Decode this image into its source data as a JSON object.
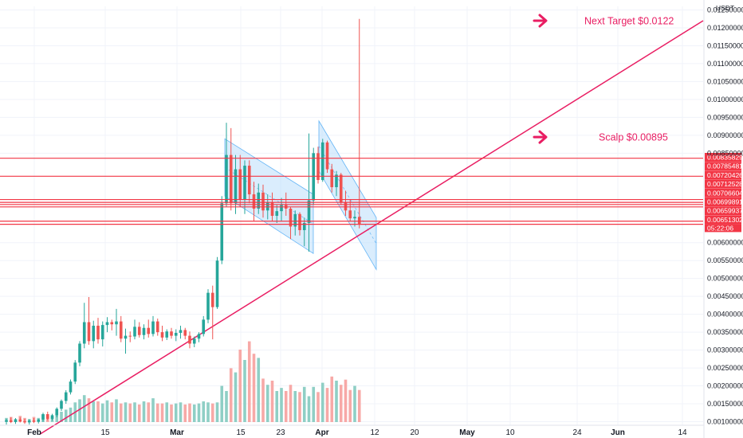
{
  "colors": {
    "up": "#26a69a",
    "down": "#ef5350",
    "up_volume": "#8fcfc5",
    "down_volume": "#f7a9a7",
    "annotation": "#e91e63",
    "level_line": "#f23645",
    "channel_fill": "#bbdefb",
    "channel_line": "#64b5f6",
    "grid": "#f0f3fa",
    "axis_text": "#131722"
  },
  "icons": {
    "arrow": "arrow-right-icon"
  },
  "chart_data": {
    "type": "candlestick",
    "quote_unit": "USDT",
    "y_axis": {
      "position": "right",
      "scale": "linear",
      "ylim": [
        0.0009,
        0.0126
      ],
      "tick_labels": [
        "0.01250000",
        "0.01200000",
        "0.01150000",
        "0.01100000",
        "0.01050000",
        "0.01000000",
        "0.00950000",
        "0.00900000",
        "0.00850000",
        "0.00600000",
        "0.00550000",
        "0.00500000",
        "0.00450000",
        "0.00400000",
        "0.00350000",
        "0.00300000",
        "0.00250000",
        "0.00200000",
        "0.00150000",
        "0.00100000"
      ]
    },
    "x_axis": {
      "tick_labels": [
        "Feb",
        "15",
        "Mar",
        "15",
        "23",
        "Apr",
        "12",
        "20",
        "May",
        "10",
        "24",
        "Jun",
        "14"
      ]
    },
    "grid": true,
    "candles": [
      {
        "o": 0.001,
        "h": 0.00108,
        "l": 0.00092,
        "c": 0.00104
      },
      {
        "o": 0.00104,
        "h": 0.00112,
        "l": 0.00096,
        "c": 0.00099
      },
      {
        "o": 0.00099,
        "h": 0.0011,
        "l": 0.00094,
        "c": 0.00106
      },
      {
        "o": 0.00106,
        "h": 0.00112,
        "l": 0.00098,
        "c": 0.00101
      },
      {
        "o": 0.00101,
        "h": 0.00108,
        "l": 0.00094,
        "c": 0.00098
      },
      {
        "o": 0.00098,
        "h": 0.00106,
        "l": 0.00092,
        "c": 0.00103
      },
      {
        "o": 0.00103,
        "h": 0.0011,
        "l": 0.00096,
        "c": 0.001
      },
      {
        "o": 0.001,
        "h": 0.00108,
        "l": 0.00095,
        "c": 0.00106
      },
      {
        "o": 0.00106,
        "h": 0.00125,
        "l": 0.001,
        "c": 0.00121
      },
      {
        "o": 0.00121,
        "h": 0.00128,
        "l": 0.00104,
        "c": 0.00108
      },
      {
        "o": 0.00108,
        "h": 0.00122,
        "l": 0.00103,
        "c": 0.00118
      },
      {
        "o": 0.00118,
        "h": 0.0014,
        "l": 0.00112,
        "c": 0.00136
      },
      {
        "o": 0.00136,
        "h": 0.00162,
        "l": 0.0013,
        "c": 0.00158
      },
      {
        "o": 0.00158,
        "h": 0.00188,
        "l": 0.0015,
        "c": 0.00182
      },
      {
        "o": 0.00182,
        "h": 0.00218,
        "l": 0.00176,
        "c": 0.00212
      },
      {
        "o": 0.00212,
        "h": 0.00272,
        "l": 0.00205,
        "c": 0.00265
      },
      {
        "o": 0.00265,
        "h": 0.00325,
        "l": 0.00255,
        "c": 0.00318
      },
      {
        "o": 0.00318,
        "h": 0.00432,
        "l": 0.00305,
        "c": 0.00378
      },
      {
        "o": 0.00378,
        "h": 0.00448,
        "l": 0.00315,
        "c": 0.00325
      },
      {
        "o": 0.00325,
        "h": 0.00382,
        "l": 0.00305,
        "c": 0.00368
      },
      {
        "o": 0.00368,
        "h": 0.0039,
        "l": 0.00318,
        "c": 0.0033
      },
      {
        "o": 0.0033,
        "h": 0.0038,
        "l": 0.0031,
        "c": 0.0037
      },
      {
        "o": 0.0037,
        "h": 0.00392,
        "l": 0.0035,
        "c": 0.00378
      },
      {
        "o": 0.00378,
        "h": 0.00385,
        "l": 0.00355,
        "c": 0.00372
      },
      {
        "o": 0.00372,
        "h": 0.00415,
        "l": 0.0034,
        "c": 0.0038
      },
      {
        "o": 0.0038,
        "h": 0.00395,
        "l": 0.00322,
        "c": 0.00332
      },
      {
        "o": 0.00332,
        "h": 0.0036,
        "l": 0.0029,
        "c": 0.0034
      },
      {
        "o": 0.0034,
        "h": 0.00352,
        "l": 0.00322,
        "c": 0.00338
      },
      {
        "o": 0.00338,
        "h": 0.00385,
        "l": 0.0033,
        "c": 0.00365
      },
      {
        "o": 0.00365,
        "h": 0.00378,
        "l": 0.00335,
        "c": 0.00342
      },
      {
        "o": 0.00342,
        "h": 0.00372,
        "l": 0.0033,
        "c": 0.00362
      },
      {
        "o": 0.00362,
        "h": 0.00385,
        "l": 0.00335,
        "c": 0.00345
      },
      {
        "o": 0.00345,
        "h": 0.00395,
        "l": 0.00338,
        "c": 0.0038
      },
      {
        "o": 0.0038,
        "h": 0.00388,
        "l": 0.0034,
        "c": 0.0035
      },
      {
        "o": 0.0035,
        "h": 0.00368,
        "l": 0.00325,
        "c": 0.00335
      },
      {
        "o": 0.00335,
        "h": 0.00358,
        "l": 0.00328,
        "c": 0.00352
      },
      {
        "o": 0.00352,
        "h": 0.00362,
        "l": 0.00332,
        "c": 0.0034
      },
      {
        "o": 0.0034,
        "h": 0.00358,
        "l": 0.00325,
        "c": 0.00348
      },
      {
        "o": 0.00348,
        "h": 0.00368,
        "l": 0.00332,
        "c": 0.00356
      },
      {
        "o": 0.00356,
        "h": 0.00362,
        "l": 0.0033,
        "c": 0.0034
      },
      {
        "o": 0.0034,
        "h": 0.00352,
        "l": 0.00305,
        "c": 0.00318
      },
      {
        "o": 0.00318,
        "h": 0.00338,
        "l": 0.00308,
        "c": 0.00332
      },
      {
        "o": 0.00332,
        "h": 0.0035,
        "l": 0.00322,
        "c": 0.00345
      },
      {
        "o": 0.00345,
        "h": 0.00395,
        "l": 0.00338,
        "c": 0.00385
      },
      {
        "o": 0.00385,
        "h": 0.0047,
        "l": 0.00375,
        "c": 0.0046
      },
      {
        "o": 0.0046,
        "h": 0.0048,
        "l": 0.0033,
        "c": 0.0042
      },
      {
        "o": 0.0042,
        "h": 0.0056,
        "l": 0.00415,
        "c": 0.0055
      },
      {
        "o": 0.0055,
        "h": 0.0073,
        "l": 0.0054,
        "c": 0.0071
      },
      {
        "o": 0.0071,
        "h": 0.00935,
        "l": 0.007,
        "c": 0.00845
      },
      {
        "o": 0.00845,
        "h": 0.0092,
        "l": 0.0069,
        "c": 0.0071
      },
      {
        "o": 0.0071,
        "h": 0.00845,
        "l": 0.0068,
        "c": 0.00805
      },
      {
        "o": 0.00805,
        "h": 0.00845,
        "l": 0.007,
        "c": 0.0072
      },
      {
        "o": 0.0072,
        "h": 0.0083,
        "l": 0.0068,
        "c": 0.00815
      },
      {
        "o": 0.00815,
        "h": 0.0083,
        "l": 0.0071,
        "c": 0.00735
      },
      {
        "o": 0.00735,
        "h": 0.0077,
        "l": 0.0066,
        "c": 0.00695
      },
      {
        "o": 0.00695,
        "h": 0.00765,
        "l": 0.0068,
        "c": 0.0074
      },
      {
        "o": 0.0074,
        "h": 0.00762,
        "l": 0.0067,
        "c": 0.0069
      },
      {
        "o": 0.0069,
        "h": 0.00735,
        "l": 0.00665,
        "c": 0.00712
      },
      {
        "o": 0.00712,
        "h": 0.0074,
        "l": 0.0066,
        "c": 0.00675
      },
      {
        "o": 0.00675,
        "h": 0.00705,
        "l": 0.00655,
        "c": 0.00688
      },
      {
        "o": 0.00688,
        "h": 0.00725,
        "l": 0.0066,
        "c": 0.00705
      },
      {
        "o": 0.00705,
        "h": 0.0074,
        "l": 0.00675,
        "c": 0.00695
      },
      {
        "o": 0.00695,
        "h": 0.007,
        "l": 0.0061,
        "c": 0.00645
      },
      {
        "o": 0.00645,
        "h": 0.0069,
        "l": 0.0062,
        "c": 0.0068
      },
      {
        "o": 0.0068,
        "h": 0.00685,
        "l": 0.0062,
        "c": 0.00635
      },
      {
        "o": 0.00635,
        "h": 0.0067,
        "l": 0.0059,
        "c": 0.00655
      },
      {
        "o": 0.00655,
        "h": 0.00905,
        "l": 0.00575,
        "c": 0.00718
      },
      {
        "o": 0.00718,
        "h": 0.00865,
        "l": 0.00705,
        "c": 0.0085
      },
      {
        "o": 0.0085,
        "h": 0.00868,
        "l": 0.00765,
        "c": 0.00775
      },
      {
        "o": 0.00775,
        "h": 0.0089,
        "l": 0.0077,
        "c": 0.0088
      },
      {
        "o": 0.0088,
        "h": 0.00885,
        "l": 0.00795,
        "c": 0.00805
      },
      {
        "o": 0.00805,
        "h": 0.0082,
        "l": 0.0074,
        "c": 0.00755
      },
      {
        "o": 0.00755,
        "h": 0.008,
        "l": 0.0073,
        "c": 0.0079
      },
      {
        "o": 0.0079,
        "h": 0.00795,
        "l": 0.00705,
        "c": 0.00712
      },
      {
        "o": 0.00712,
        "h": 0.00745,
        "l": 0.00675,
        "c": 0.0069
      },
      {
        "o": 0.0069,
        "h": 0.0072,
        "l": 0.0066,
        "c": 0.00668
      },
      {
        "o": 0.00668,
        "h": 0.0069,
        "l": 0.00645,
        "c": 0.00672
      },
      {
        "o": 0.00672,
        "h": 0.01225,
        "l": 0.0064,
        "c": 0.00651
      }
    ],
    "volume_scale_max": 1.0,
    "volumes": [
      0.04,
      0.05,
      0.03,
      0.06,
      0.04,
      0.03,
      0.05,
      0.04,
      0.07,
      0.06,
      0.05,
      0.09,
      0.1,
      0.12,
      0.14,
      0.19,
      0.22,
      0.26,
      0.23,
      0.2,
      0.2,
      0.18,
      0.21,
      0.19,
      0.22,
      0.18,
      0.19,
      0.18,
      0.19,
      0.17,
      0.2,
      0.19,
      0.23,
      0.18,
      0.18,
      0.19,
      0.17,
      0.18,
      0.19,
      0.17,
      0.18,
      0.17,
      0.18,
      0.2,
      0.19,
      0.18,
      0.19,
      0.35,
      0.3,
      0.52,
      0.48,
      0.7,
      0.6,
      0.78,
      0.66,
      0.62,
      0.42,
      0.36,
      0.4,
      0.3,
      0.33,
      0.3,
      0.36,
      0.3,
      0.29,
      0.34,
      0.25,
      0.34,
      0.29,
      0.38,
      0.33,
      0.44,
      0.4,
      0.36,
      0.41,
      0.31,
      0.35,
      0.31
    ],
    "levels": [
      {
        "label": "0.00835829",
        "value": 0.00835829
      },
      {
        "label": "0.00785481",
        "value": 0.00785481
      },
      {
        "label": "0.00720426",
        "value": 0.00720426
      },
      {
        "label": "0.00712528",
        "value": 0.00712528
      },
      {
        "label": "0.00706604",
        "value": 0.00706604
      },
      {
        "label": "0.00699891",
        "value": 0.00699891
      },
      {
        "label": "0.00659937",
        "value": 0.00659937
      },
      {
        "label": "0.00651302",
        "value": 0.00651302
      }
    ],
    "price_label_time": "05:22:06",
    "annotations": [
      {
        "text": "Next Target $0.0122",
        "value": 0.0122
      },
      {
        "text": "Scalp $0.00895",
        "value": 0.00895
      }
    ],
    "trendline": {
      "from": 0.00065,
      "to": 0.0122
    },
    "channels": [
      {
        "name": "channel-1",
        "start_high": 0.0089,
        "end_high": 0.00735,
        "start_low": 0.0073,
        "end_low": 0.0057
      },
      {
        "name": "channel-2",
        "start_high": 0.0094,
        "end_high": 0.0067,
        "start_low": 0.008,
        "end_low": 0.00525
      }
    ]
  }
}
